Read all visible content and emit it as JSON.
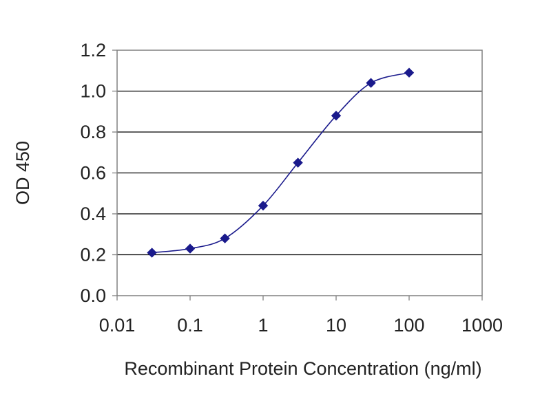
{
  "chart_data": {
    "type": "scatter",
    "title": "",
    "xlabel": "Recombinant Protein Concentration (ng/ml)",
    "ylabel": "OD 450",
    "x_scale": "log",
    "xlim": [
      0.01,
      1000
    ],
    "ylim": [
      0.0,
      1.2
    ],
    "x_ticks": [
      0.01,
      0.1,
      1,
      10,
      100,
      1000
    ],
    "x_tick_labels": [
      "0.01",
      "0.1",
      "1",
      "10",
      "100",
      "1000"
    ],
    "y_ticks": [
      0.0,
      0.2,
      0.4,
      0.6,
      0.8,
      1.0,
      1.2
    ],
    "y_tick_labels": [
      "0.0",
      "0.2",
      "0.4",
      "0.6",
      "0.8",
      "1.0",
      "1.2"
    ],
    "grid": "horizontal",
    "series": [
      {
        "x": [
          0.03,
          0.1,
          0.3,
          1,
          3,
          10,
          30,
          100
        ],
        "y": [
          0.21,
          0.23,
          0.28,
          0.44,
          0.65,
          0.88,
          1.04,
          1.09
        ],
        "color": "#1a1a8c",
        "marker": "diamond",
        "smooth_line": true
      }
    ]
  }
}
